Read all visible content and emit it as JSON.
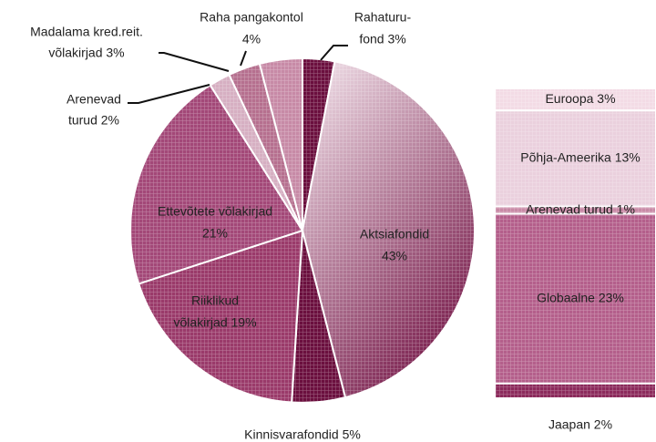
{
  "chart_data": [
    {
      "type": "pie",
      "values": [
        3,
        43,
        5,
        19,
        21,
        2,
        3,
        4
      ],
      "value_labels": [
        [
          "Rahaturu-",
          "fond 3%"
        ],
        [
          "Aktsiafondid",
          "43%"
        ],
        [
          "Kinnisvarafondid 5%"
        ],
        [
          "Riiklikud",
          "võlakirjad 19%"
        ],
        [
          "Ettevõtete võlakirjad",
          "21%"
        ],
        [
          "Arenevad",
          "turud 2%"
        ],
        [
          "Madalama kred.reit.",
          "võlakirjad 3%"
        ],
        [
          "Raha pangakontol",
          "4%"
        ]
      ],
      "colors": [
        "#6b0f3e",
        "#8a2c5c",
        "#6b0f3e",
        "#9a3a6a",
        "#a34878",
        "#d6afc2",
        "#b6708f",
        "#c78aa6"
      ]
    },
    {
      "type": "stacked-bar",
      "values": [
        3,
        13,
        1,
        23,
        2
      ],
      "value_labels": [
        "Euroopa 3%",
        "Põhja-Ameerika 13%",
        "Arenevad turud 1%",
        "Globaalne 23%",
        "Jaapan 2%"
      ],
      "colors": [
        "#f3dbe5",
        "#ead0dd",
        "#c98aa6",
        "#b45f8b",
        "#8c2a5c"
      ]
    }
  ]
}
